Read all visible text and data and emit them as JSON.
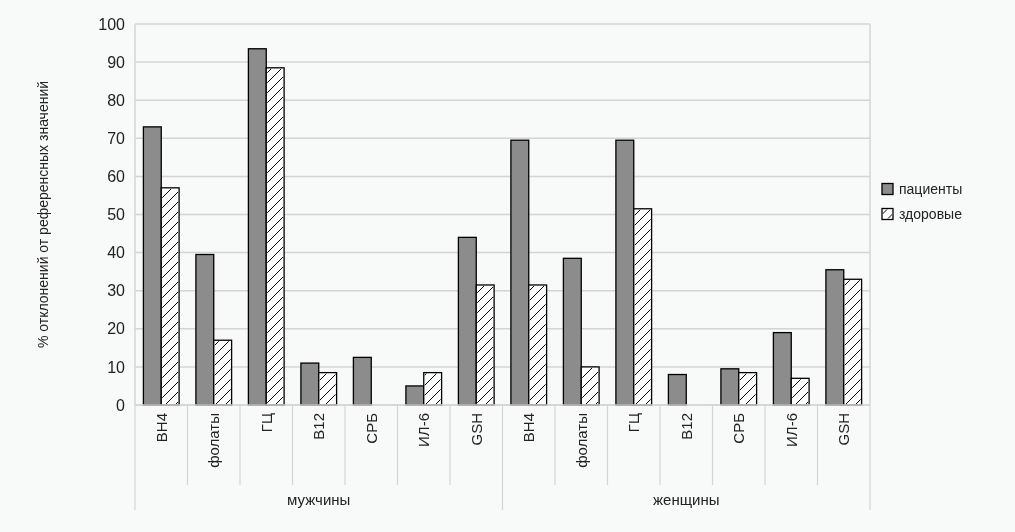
{
  "chart_data": {
    "type": "bar",
    "ylabel": "% отклонений от референсных значений",
    "categories": [
      "BH4",
      "фолаты",
      "ГЦ",
      "B12",
      "СРБ",
      "ИЛ-6",
      "GSH",
      "BH4",
      "фолаты",
      "ГЦ",
      "B12",
      "СРБ",
      "ИЛ-6",
      "GSH"
    ],
    "series": [
      {
        "name": "пациенты",
        "color": "#8c8c8c",
        "values": [
          73,
          39.5,
          93.5,
          11,
          12.5,
          5,
          44,
          69.5,
          38.5,
          69.5,
          8,
          9.5,
          19,
          35.5
        ]
      },
      {
        "name": "здоровые",
        "color": "#ffffff",
        "values": [
          57,
          17,
          88.5,
          8.5,
          0,
          8.5,
          31.5,
          31.5,
          10,
          51.5,
          0,
          8.5,
          7,
          33
        ]
      }
    ],
    "ylim": [
      0,
      100
    ],
    "yticks": [
      0,
      10,
      20,
      30,
      40,
      50,
      60,
      70,
      80,
      90,
      100
    ],
    "grid": "y",
    "legend": "right",
    "annotations": [
      "мужчины",
      "женщины"
    ]
  }
}
